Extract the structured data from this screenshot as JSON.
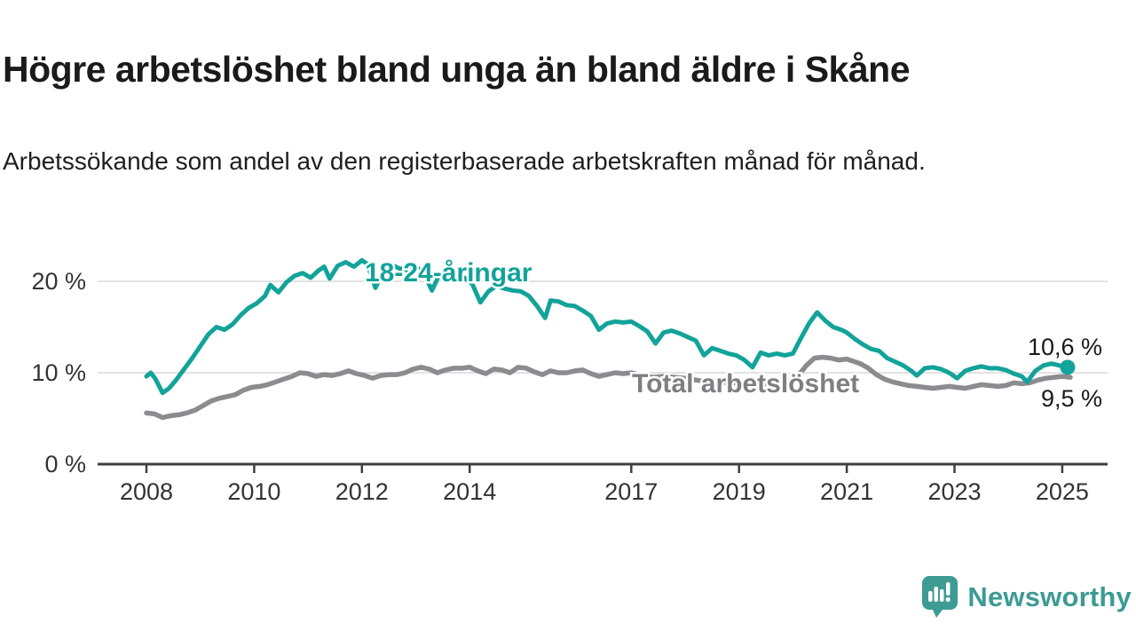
{
  "header": {
    "title": "Högre arbetslöshet bland unga än bland äldre i Skåne",
    "subtitle": "Arbetssökande som andel av den registerbaserade arbetskraften månad för månad."
  },
  "branding": {
    "wordmark": "Newsworthy",
    "logo_icon": "speech-bubble-bar-chart-exclamation"
  },
  "colors": {
    "youth_line": "#12A39A",
    "total_line": "#8B8B90",
    "total_label_text": "#7E7E83",
    "annotation_text": "#1A1A1A",
    "brand_teal": "#3D9B94",
    "axis": "#3F3F3F",
    "grid": "#D9D9D9",
    "tick_text": "#333333"
  },
  "chart_data": {
    "type": "line",
    "title": "Högre arbetslöshet bland unga än bland äldre i Skåne",
    "subtitle": "Arbetssökande som andel av den registerbaserade arbetskraften månad för månad.",
    "xlabel": "",
    "ylabel": "",
    "unit": "%",
    "grid": "horizontal",
    "legend": "inline-labels",
    "x_range": [
      2008.0,
      2025.3
    ],
    "ylim": [
      0,
      23
    ],
    "x_ticks": [
      2008,
      2010,
      2012,
      2014,
      2017,
      2019,
      2021,
      2023,
      2025
    ],
    "y_ticks": [
      {
        "value": 0,
        "label": "0 %"
      },
      {
        "value": 10,
        "label": "10 %"
      },
      {
        "value": 20,
        "label": "20 %"
      }
    ],
    "series": [
      {
        "name": "18-24-åringar",
        "color": "#12A39A",
        "end_label": "10,6 %",
        "end_value": 10.6,
        "marker_end": true,
        "points": [
          [
            2008.0,
            9.6
          ],
          [
            2008.08,
            10.0
          ],
          [
            2008.17,
            9.3
          ],
          [
            2008.3,
            7.8
          ],
          [
            2008.42,
            8.3
          ],
          [
            2008.55,
            9.2
          ],
          [
            2008.7,
            10.4
          ],
          [
            2008.85,
            11.6
          ],
          [
            2009.0,
            12.9
          ],
          [
            2009.15,
            14.2
          ],
          [
            2009.3,
            15.0
          ],
          [
            2009.45,
            14.7
          ],
          [
            2009.6,
            15.3
          ],
          [
            2009.75,
            16.3
          ],
          [
            2009.9,
            17.1
          ],
          [
            2010.05,
            17.6
          ],
          [
            2010.2,
            18.4
          ],
          [
            2010.3,
            19.6
          ],
          [
            2010.45,
            18.8
          ],
          [
            2010.6,
            19.9
          ],
          [
            2010.75,
            20.6
          ],
          [
            2010.9,
            20.9
          ],
          [
            2011.05,
            20.4
          ],
          [
            2011.2,
            21.2
          ],
          [
            2011.3,
            21.6
          ],
          [
            2011.4,
            20.3
          ],
          [
            2011.55,
            21.7
          ],
          [
            2011.7,
            22.1
          ],
          [
            2011.85,
            21.6
          ],
          [
            2012.0,
            22.3
          ],
          [
            2012.1,
            21.9
          ],
          [
            2012.25,
            19.3
          ],
          [
            2012.4,
            21.0
          ],
          [
            2012.55,
            21.8
          ],
          [
            2012.7,
            21.4
          ],
          [
            2012.85,
            21.2
          ],
          [
            2013.0,
            21.6
          ],
          [
            2013.15,
            20.9
          ],
          [
            2013.3,
            19.0
          ],
          [
            2013.45,
            20.9
          ],
          [
            2013.6,
            21.0
          ],
          [
            2013.75,
            20.6
          ],
          [
            2013.9,
            20.4
          ],
          [
            2014.05,
            19.7
          ],
          [
            2014.2,
            17.7
          ],
          [
            2014.35,
            18.9
          ],
          [
            2014.5,
            19.5
          ],
          [
            2014.65,
            19.2
          ],
          [
            2014.8,
            19.0
          ],
          [
            2014.95,
            18.9
          ],
          [
            2015.1,
            18.4
          ],
          [
            2015.25,
            17.3
          ],
          [
            2015.4,
            16.0
          ],
          [
            2015.5,
            17.9
          ],
          [
            2015.65,
            17.8
          ],
          [
            2015.8,
            17.4
          ],
          [
            2015.95,
            17.3
          ],
          [
            2016.1,
            16.8
          ],
          [
            2016.25,
            16.2
          ],
          [
            2016.4,
            14.7
          ],
          [
            2016.55,
            15.4
          ],
          [
            2016.7,
            15.6
          ],
          [
            2016.85,
            15.5
          ],
          [
            2017.0,
            15.6
          ],
          [
            2017.15,
            15.1
          ],
          [
            2017.3,
            14.5
          ],
          [
            2017.45,
            13.2
          ],
          [
            2017.6,
            14.4
          ],
          [
            2017.75,
            14.6
          ],
          [
            2017.9,
            14.3
          ],
          [
            2018.05,
            13.9
          ],
          [
            2018.2,
            13.5
          ],
          [
            2018.35,
            11.9
          ],
          [
            2018.5,
            12.7
          ],
          [
            2018.65,
            12.4
          ],
          [
            2018.8,
            12.1
          ],
          [
            2018.95,
            11.9
          ],
          [
            2019.1,
            11.4
          ],
          [
            2019.25,
            10.6
          ],
          [
            2019.4,
            12.2
          ],
          [
            2019.55,
            11.9
          ],
          [
            2019.7,
            12.1
          ],
          [
            2019.85,
            11.9
          ],
          [
            2020.0,
            12.1
          ],
          [
            2020.15,
            13.8
          ],
          [
            2020.3,
            15.4
          ],
          [
            2020.45,
            16.6
          ],
          [
            2020.6,
            15.7
          ],
          [
            2020.75,
            15.0
          ],
          [
            2020.9,
            14.7
          ],
          [
            2021.0,
            14.4
          ],
          [
            2021.15,
            13.7
          ],
          [
            2021.3,
            13.1
          ],
          [
            2021.45,
            12.6
          ],
          [
            2021.6,
            12.4
          ],
          [
            2021.75,
            11.6
          ],
          [
            2021.9,
            11.2
          ],
          [
            2022.05,
            10.8
          ],
          [
            2022.2,
            10.2
          ],
          [
            2022.3,
            9.7
          ],
          [
            2022.45,
            10.5
          ],
          [
            2022.6,
            10.6
          ],
          [
            2022.75,
            10.4
          ],
          [
            2022.9,
            10.0
          ],
          [
            2023.05,
            9.4
          ],
          [
            2023.2,
            10.2
          ],
          [
            2023.35,
            10.5
          ],
          [
            2023.5,
            10.7
          ],
          [
            2023.65,
            10.5
          ],
          [
            2023.8,
            10.5
          ],
          [
            2023.95,
            10.3
          ],
          [
            2024.1,
            9.9
          ],
          [
            2024.25,
            9.6
          ],
          [
            2024.35,
            9.0
          ],
          [
            2024.5,
            10.2
          ],
          [
            2024.65,
            10.8
          ],
          [
            2024.8,
            11.0
          ],
          [
            2024.95,
            10.8
          ],
          [
            2025.1,
            10.6
          ]
        ]
      },
      {
        "name": "Total arbetslöshet",
        "color": "#8B8B90",
        "end_label": "9,5 %",
        "end_value": 9.5,
        "marker_end": false,
        "points": [
          [
            2008.0,
            5.6
          ],
          [
            2008.15,
            5.5
          ],
          [
            2008.3,
            5.1
          ],
          [
            2008.45,
            5.3
          ],
          [
            2008.6,
            5.4
          ],
          [
            2008.75,
            5.6
          ],
          [
            2008.9,
            5.9
          ],
          [
            2009.05,
            6.4
          ],
          [
            2009.2,
            6.9
          ],
          [
            2009.35,
            7.2
          ],
          [
            2009.5,
            7.4
          ],
          [
            2009.65,
            7.6
          ],
          [
            2009.8,
            8.1
          ],
          [
            2009.95,
            8.4
          ],
          [
            2010.1,
            8.5
          ],
          [
            2010.25,
            8.7
          ],
          [
            2010.4,
            9.0
          ],
          [
            2010.55,
            9.3
          ],
          [
            2010.7,
            9.6
          ],
          [
            2010.85,
            10.0
          ],
          [
            2011.0,
            9.9
          ],
          [
            2011.15,
            9.6
          ],
          [
            2011.3,
            9.8
          ],
          [
            2011.45,
            9.7
          ],
          [
            2011.6,
            9.9
          ],
          [
            2011.75,
            10.2
          ],
          [
            2011.9,
            9.9
          ],
          [
            2012.05,
            9.7
          ],
          [
            2012.2,
            9.4
          ],
          [
            2012.35,
            9.7
          ],
          [
            2012.5,
            9.8
          ],
          [
            2012.65,
            9.8
          ],
          [
            2012.8,
            10.0
          ],
          [
            2012.95,
            10.4
          ],
          [
            2013.1,
            10.6
          ],
          [
            2013.25,
            10.4
          ],
          [
            2013.4,
            10.0
          ],
          [
            2013.55,
            10.3
          ],
          [
            2013.7,
            10.5
          ],
          [
            2013.85,
            10.5
          ],
          [
            2014.0,
            10.6
          ],
          [
            2014.15,
            10.2
          ],
          [
            2014.3,
            9.9
          ],
          [
            2014.45,
            10.4
          ],
          [
            2014.6,
            10.3
          ],
          [
            2014.75,
            10.0
          ],
          [
            2014.9,
            10.6
          ],
          [
            2015.05,
            10.5
          ],
          [
            2015.2,
            10.1
          ],
          [
            2015.35,
            9.8
          ],
          [
            2015.5,
            10.2
          ],
          [
            2015.65,
            10.0
          ],
          [
            2015.8,
            10.0
          ],
          [
            2015.95,
            10.2
          ],
          [
            2016.1,
            10.3
          ],
          [
            2016.25,
            9.9
          ],
          [
            2016.4,
            9.6
          ],
          [
            2016.55,
            9.8
          ],
          [
            2016.7,
            10.0
          ],
          [
            2016.85,
            9.9
          ],
          [
            2017.0,
            10.0
          ],
          [
            2017.2,
            9.7
          ],
          [
            2017.4,
            9.5
          ],
          [
            2017.6,
            9.6
          ],
          [
            2017.8,
            9.5
          ],
          [
            2018.0,
            9.4
          ],
          [
            2018.2,
            9.2
          ],
          [
            2018.4,
            9.0
          ],
          [
            2018.6,
            9.1
          ],
          [
            2018.8,
            8.9
          ],
          [
            2019.0,
            8.9
          ],
          [
            2019.2,
            8.7
          ],
          [
            2019.4,
            8.8
          ],
          [
            2019.6,
            8.8
          ],
          [
            2019.8,
            8.9
          ],
          [
            2019.95,
            9.1
          ],
          [
            2020.1,
            9.7
          ],
          [
            2020.25,
            10.8
          ],
          [
            2020.4,
            11.6
          ],
          [
            2020.55,
            11.7
          ],
          [
            2020.7,
            11.6
          ],
          [
            2020.85,
            11.4
          ],
          [
            2021.0,
            11.5
          ],
          [
            2021.1,
            11.3
          ],
          [
            2021.25,
            11.0
          ],
          [
            2021.4,
            10.5
          ],
          [
            2021.55,
            9.8
          ],
          [
            2021.7,
            9.3
          ],
          [
            2021.85,
            9.0
          ],
          [
            2022.0,
            8.8
          ],
          [
            2022.15,
            8.6
          ],
          [
            2022.3,
            8.5
          ],
          [
            2022.45,
            8.4
          ],
          [
            2022.6,
            8.3
          ],
          [
            2022.75,
            8.4
          ],
          [
            2022.9,
            8.5
          ],
          [
            2023.05,
            8.4
          ],
          [
            2023.2,
            8.3
          ],
          [
            2023.35,
            8.5
          ],
          [
            2023.5,
            8.7
          ],
          [
            2023.65,
            8.6
          ],
          [
            2023.8,
            8.5
          ],
          [
            2023.95,
            8.6
          ],
          [
            2024.1,
            8.9
          ],
          [
            2024.25,
            8.8
          ],
          [
            2024.4,
            8.9
          ],
          [
            2024.55,
            9.2
          ],
          [
            2024.7,
            9.4
          ],
          [
            2024.85,
            9.5
          ],
          [
            2025.0,
            9.6
          ],
          [
            2025.15,
            9.5
          ]
        ]
      }
    ]
  }
}
